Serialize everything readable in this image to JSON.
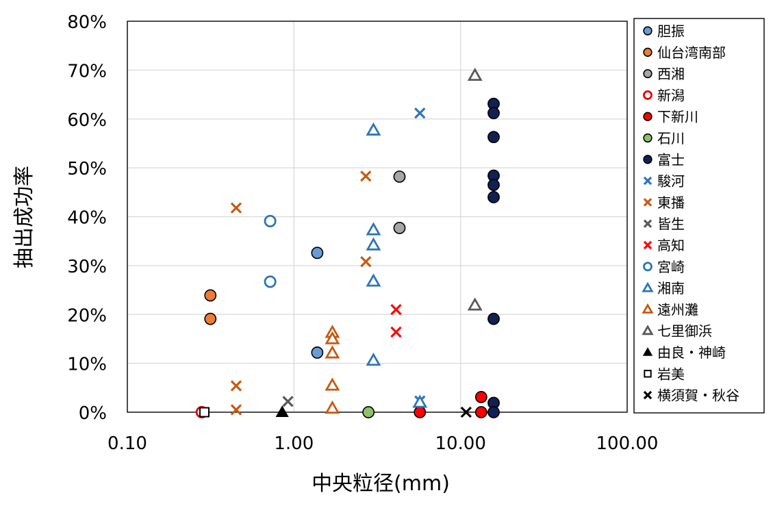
{
  "chart_data": {
    "type": "scatter",
    "title": "",
    "xlabel": "中央粒径(mm)",
    "ylabel": "抽出成功率",
    "x_scale": "log",
    "xlim": [
      0.1,
      100
    ],
    "ylim": [
      0,
      0.8
    ],
    "x_ticks": [
      0.1,
      1,
      10,
      100
    ],
    "x_tick_labels": [
      "0.10",
      "1.00",
      "10.00",
      "100.00"
    ],
    "y_ticks": [
      0,
      0.1,
      0.2,
      0.3,
      0.4,
      0.5,
      0.6,
      0.7,
      0.8
    ],
    "y_tick_labels": [
      "0%",
      "10%",
      "20%",
      "30%",
      "40%",
      "50%",
      "60%",
      "70%",
      "80%"
    ],
    "grid": true,
    "legend_position": "right",
    "series": [
      {
        "name": "胆振",
        "marker": "circle",
        "fill": "#6a9bd6",
        "stroke": "#000000",
        "points": [
          [
            1.38,
            0.326
          ],
          [
            1.38,
            0.122
          ]
        ]
      },
      {
        "name": "仙台湾南部",
        "marker": "circle",
        "fill": "#ed7d31",
        "stroke": "#000000",
        "points": [
          [
            0.315,
            0.239
          ],
          [
            0.315,
            0.191
          ]
        ]
      },
      {
        "name": "西湘",
        "marker": "circle",
        "fill": "#a6a6a6",
        "stroke": "#000000",
        "points": [
          [
            4.3,
            0.482
          ],
          [
            4.3,
            0.377
          ]
        ]
      },
      {
        "name": "新潟",
        "marker": "circle-open",
        "fill": "none",
        "stroke": "#e00000",
        "points": [
          [
            0.28,
            0.0
          ]
        ]
      },
      {
        "name": "下新川",
        "marker": "circle",
        "fill": "#ff0000",
        "stroke": "#000000",
        "points": [
          [
            13.3,
            0.031
          ],
          [
            5.7,
            0.0
          ],
          [
            13.3,
            0.0
          ]
        ]
      },
      {
        "name": "石川",
        "marker": "circle",
        "fill": "#8fc16a",
        "stroke": "#000000",
        "points": [
          [
            2.8,
            0.0
          ]
        ]
      },
      {
        "name": "富士",
        "marker": "circle",
        "fill": "#112154",
        "stroke": "#000000",
        "points": [
          [
            15.8,
            0.631
          ],
          [
            15.8,
            0.612
          ],
          [
            15.8,
            0.563
          ],
          [
            15.8,
            0.484
          ],
          [
            15.8,
            0.465
          ],
          [
            15.8,
            0.44
          ],
          [
            15.8,
            0.191
          ],
          [
            15.8,
            0.019
          ],
          [
            15.8,
            0.0
          ]
        ]
      },
      {
        "name": "駿河",
        "marker": "x",
        "fill": "none",
        "stroke": "#2e75b6",
        "points": [
          [
            5.7,
            0.612
          ],
          [
            5.7,
            0.023
          ]
        ]
      },
      {
        "name": "東播",
        "marker": "x",
        "fill": "none",
        "stroke": "#c55a11",
        "points": [
          [
            0.45,
            0.418
          ],
          [
            2.7,
            0.483
          ],
          [
            2.7,
            0.308
          ],
          [
            0.45,
            0.054
          ],
          [
            0.45,
            0.005
          ]
        ]
      },
      {
        "name": "皆生",
        "marker": "x",
        "fill": "none",
        "stroke": "#595959",
        "points": [
          [
            0.92,
            0.022
          ]
        ]
      },
      {
        "name": "高知",
        "marker": "x",
        "fill": "none",
        "stroke": "#ff0000",
        "points": [
          [
            4.1,
            0.21
          ],
          [
            4.1,
            0.164
          ]
        ]
      },
      {
        "name": "宮崎",
        "marker": "circle-open",
        "fill": "none",
        "stroke": "#2e75b6",
        "points": [
          [
            0.72,
            0.391
          ],
          [
            0.72,
            0.267
          ]
        ]
      },
      {
        "name": "湘南",
        "marker": "triangle-open",
        "fill": "none",
        "stroke": "#2e75b6",
        "points": [
          [
            3.0,
            0.577
          ],
          [
            3.0,
            0.373
          ],
          [
            3.0,
            0.342
          ],
          [
            3.0,
            0.268
          ],
          [
            3.0,
            0.106
          ],
          [
            5.7,
            0.02
          ]
        ]
      },
      {
        "name": "遠州灘",
        "marker": "triangle-open",
        "fill": "none",
        "stroke": "#c55a11",
        "points": [
          [
            1.7,
            0.163
          ],
          [
            1.7,
            0.15
          ],
          [
            1.7,
            0.121
          ],
          [
            1.7,
            0.055
          ],
          [
            1.7,
            0.008
          ]
        ]
      },
      {
        "name": "七里御浜",
        "marker": "triangle-open",
        "fill": "none",
        "stroke": "#595959",
        "points": [
          [
            12.2,
            0.689
          ],
          [
            12.2,
            0.219
          ]
        ]
      },
      {
        "name": "由良・神崎",
        "marker": "triangle",
        "fill": "#000000",
        "stroke": "#000000",
        "points": [
          [
            0.85,
            0.0
          ]
        ]
      },
      {
        "name": "岩美",
        "marker": "square-open",
        "fill": "#ffffff",
        "stroke": "#000000",
        "points": [
          [
            0.29,
            0.0
          ]
        ]
      },
      {
        "name": "横須賀・秋谷",
        "marker": "x",
        "fill": "none",
        "stroke": "#000000",
        "points": [
          [
            10.8,
            0.0
          ]
        ]
      }
    ]
  }
}
